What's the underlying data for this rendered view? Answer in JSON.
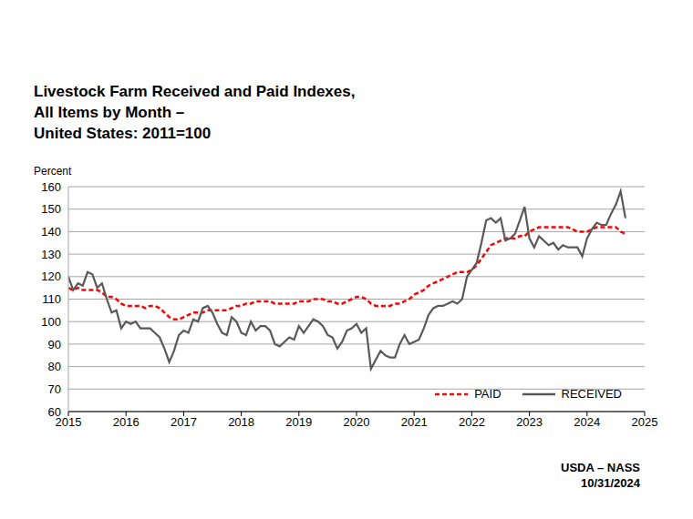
{
  "chart_data": {
    "type": "line",
    "title": "Livestock Farm Received and Paid Indexes,\nAll Items by Month –\nUnited States: 2011=100",
    "ylabel": "Percent",
    "annotations": [
      "USDA – NASS",
      "10/31/2024"
    ],
    "x": [
      2015,
      2015.083,
      2015.167,
      2015.25,
      2015.333,
      2015.417,
      2015.5,
      2015.583,
      2015.667,
      2015.75,
      2015.833,
      2015.917,
      2016,
      2016.083,
      2016.167,
      2016.25,
      2016.333,
      2016.417,
      2016.5,
      2016.583,
      2016.667,
      2016.75,
      2016.833,
      2016.917,
      2017,
      2017.083,
      2017.167,
      2017.25,
      2017.333,
      2017.417,
      2017.5,
      2017.583,
      2017.667,
      2017.75,
      2017.833,
      2017.917,
      2018,
      2018.083,
      2018.167,
      2018.25,
      2018.333,
      2018.417,
      2018.5,
      2018.583,
      2018.667,
      2018.75,
      2018.833,
      2018.917,
      2019,
      2019.083,
      2019.167,
      2019.25,
      2019.333,
      2019.417,
      2019.5,
      2019.583,
      2019.667,
      2019.75,
      2019.833,
      2019.917,
      2020,
      2020.083,
      2020.167,
      2020.25,
      2020.333,
      2020.417,
      2020.5,
      2020.583,
      2020.667,
      2020.75,
      2020.833,
      2020.917,
      2021,
      2021.083,
      2021.167,
      2021.25,
      2021.333,
      2021.417,
      2021.5,
      2021.583,
      2021.667,
      2021.75,
      2021.833,
      2021.917,
      2022,
      2022.083,
      2022.167,
      2022.25,
      2022.333,
      2022.417,
      2022.5,
      2022.583,
      2022.667,
      2022.75,
      2022.833,
      2022.917,
      2023,
      2023.083,
      2023.167,
      2023.25,
      2023.333,
      2023.417,
      2023.5,
      2023.583,
      2023.667,
      2023.75,
      2023.833,
      2023.917,
      2024,
      2024.083,
      2024.167,
      2024.25,
      2024.333,
      2024.417,
      2024.5,
      2024.583,
      2024.667
    ],
    "series": [
      {
        "name": "PAID",
        "color": "#ff0000",
        "line_style": "dashed",
        "values": [
          115,
          114,
          115,
          114,
          114,
          114,
          114,
          113,
          111,
          111,
          110,
          108,
          107,
          107,
          107,
          107,
          106,
          107,
          107,
          106,
          104,
          102,
          101,
          101,
          102,
          103,
          104,
          104,
          104,
          105,
          105,
          105,
          105,
          105,
          106,
          107,
          107,
          108,
          108,
          109,
          109,
          109,
          109,
          108,
          108,
          108,
          108,
          108,
          109,
          109,
          109,
          110,
          110,
          110,
          109,
          109,
          108,
          108,
          109,
          110,
          111,
          111,
          110,
          108,
          107,
          107,
          107,
          107,
          108,
          108,
          109,
          110,
          112,
          113,
          114,
          116,
          117,
          118,
          119,
          120,
          121,
          122,
          122,
          122,
          123,
          125,
          128,
          131,
          134,
          135,
          136,
          137,
          137,
          137,
          138,
          138,
          140,
          141,
          142,
          142,
          142,
          142,
          142,
          142,
          142,
          141,
          140,
          140,
          140,
          141,
          142,
          142,
          142,
          142,
          142,
          140,
          139
        ]
      },
      {
        "name": "RECEIVED",
        "color": "#595959",
        "line_style": "solid",
        "values": [
          120,
          114,
          117,
          116,
          122,
          121,
          115,
          117,
          110,
          104,
          105,
          97,
          100,
          99,
          100,
          97,
          97,
          97,
          95,
          93,
          88,
          82,
          87,
          94,
          96,
          95,
          101,
          100,
          106,
          107,
          104,
          99,
          95,
          94,
          102,
          100,
          95,
          94,
          100,
          96,
          98,
          98,
          96,
          90,
          89,
          91,
          93,
          92,
          98,
          95,
          98,
          101,
          100,
          98,
          94,
          93,
          88,
          91,
          96,
          97,
          99,
          95,
          97,
          79,
          83,
          87,
          85,
          84,
          84,
          90,
          94,
          90,
          91,
          92,
          97,
          103,
          106,
          107,
          107,
          108,
          109,
          108,
          110,
          120,
          123,
          126,
          135,
          145,
          146,
          144,
          146,
          136,
          137,
          139,
          145,
          151,
          137,
          133,
          138,
          136,
          134,
          135,
          132,
          134,
          133,
          133,
          133,
          129,
          137,
          141,
          144,
          143,
          143,
          148,
          152,
          158,
          146
        ]
      }
    ],
    "xlim": [
      2015,
      2025
    ],
    "xticks": [
      2015,
      2016,
      2017,
      2018,
      2019,
      2020,
      2021,
      2022,
      2023,
      2024,
      2025
    ],
    "ylim": [
      60,
      160
    ],
    "yticks": [
      60,
      70,
      80,
      90,
      100,
      110,
      120,
      130,
      140,
      150,
      160
    ],
    "grid": true,
    "legend": "lower right"
  }
}
